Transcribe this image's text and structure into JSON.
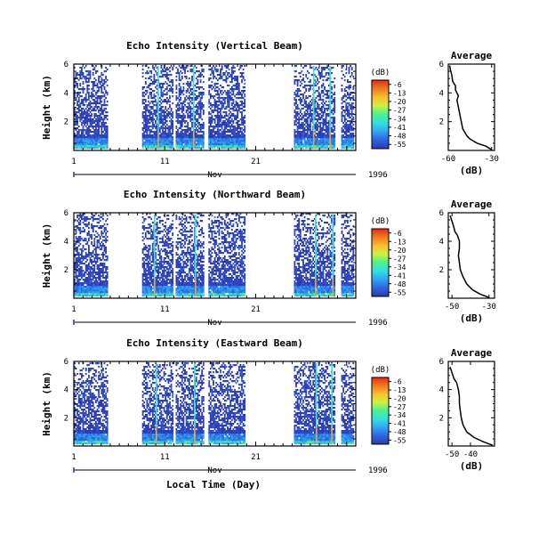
{
  "figure": {
    "xlabel": "Local Time (Day)",
    "month_label": "Nov",
    "year_label": "1996"
  },
  "colorbar": {
    "unit": "(dB)",
    "ticks": [
      "-6",
      "-13",
      "-20",
      "-27",
      "-34",
      "-41",
      "-48",
      "-55"
    ],
    "stops": [
      "#2a3bb0",
      "#2f63e0",
      "#2fa6f0",
      "#33e0e0",
      "#4cf08c",
      "#d0f040",
      "#f8c030",
      "#f07a20",
      "#e02b16"
    ]
  },
  "chart_data": [
    {
      "type": "heatmap",
      "title": "Echo Intensity (Vertical Beam)",
      "ylabel": "Height (km)",
      "xlim": [
        1,
        32
      ],
      "ylim": [
        0,
        6
      ],
      "x_ticks": [
        "1",
        "11",
        "21"
      ],
      "y_ticks": [
        "6",
        "4",
        "2"
      ],
      "data_segments": [
        [
          1,
          4.6
        ],
        [
          8.5,
          11.8
        ],
        [
          12.2,
          15.2
        ],
        [
          15.8,
          19.8
        ],
        [
          25.2,
          29.6
        ],
        [
          30.4,
          31.7
        ]
      ],
      "bright_columns": [
        10.2,
        14.1,
        27.3,
        29.1
      ],
      "profile": {
        "title": "Average",
        "xlabel": "(dB)",
        "xlim": [
          -60,
          -28
        ],
        "x_ticks": [
          -60,
          -30
        ],
        "ylim": [
          0,
          6
        ],
        "y_ticks": [
          6,
          4,
          2
        ],
        "height_km": [
          0.05,
          0.3,
          0.5,
          0.8,
          1.0,
          1.5,
          2.0,
          2.5,
          3.0,
          3.5,
          3.8,
          4.2,
          4.5,
          4.8,
          5.2,
          5.6,
          5.9
        ],
        "dB": [
          -30,
          -34,
          -40,
          -45,
          -47,
          -50,
          -51,
          -52,
          -53,
          -54,
          -53,
          -55,
          -55,
          -57,
          -57.5,
          -58.5,
          -59
        ]
      }
    },
    {
      "type": "heatmap",
      "title": "Echo Intensity (Northward Beam)",
      "ylabel": "Height (km)",
      "xlim": [
        1,
        32
      ],
      "ylim": [
        0,
        6
      ],
      "x_ticks": [
        "1",
        "11",
        "21"
      ],
      "y_ticks": [
        "6",
        "4",
        "2"
      ],
      "data_segments": [
        [
          1,
          4.6
        ],
        [
          8.5,
          11.8
        ],
        [
          12.2,
          15.2
        ],
        [
          15.8,
          19.8
        ],
        [
          25.2,
          29.6
        ],
        [
          30.4,
          31.7
        ]
      ],
      "bright_columns": [
        9.8,
        14.3,
        27.5,
        29.4
      ],
      "profile": {
        "title": "Average",
        "xlabel": "(dB)",
        "xlim": [
          -52,
          -27
        ],
        "x_ticks": [
          -50,
          -30
        ],
        "ylim": [
          0,
          6
        ],
        "y_ticks": [
          6,
          4,
          2
        ],
        "height_km": [
          0.05,
          0.3,
          0.6,
          1.0,
          1.5,
          2.0,
          2.5,
          3.0,
          3.5,
          4.0,
          4.4,
          4.7,
          5.0,
          5.4,
          5.8
        ],
        "dB": [
          -30,
          -35,
          -39,
          -42,
          -44,
          -45.5,
          -46,
          -46.5,
          -46,
          -46,
          -47,
          -48.5,
          -49,
          -50,
          -51
        ]
      }
    },
    {
      "type": "heatmap",
      "title": "Echo Intensity (Eastward Beam)",
      "ylabel": "Height (km)",
      "xlim": [
        1,
        32
      ],
      "ylim": [
        0,
        6
      ],
      "x_ticks": [
        "1",
        "11",
        "21"
      ],
      "y_ticks": [
        "6",
        "4",
        "2"
      ],
      "data_segments": [
        [
          1,
          4.6
        ],
        [
          8.5,
          11.8
        ],
        [
          12.2,
          15.2
        ],
        [
          15.8,
          19.8
        ],
        [
          25.2,
          29.6
        ],
        [
          30.4,
          31.7
        ]
      ],
      "bright_columns": [
        10.0,
        14.2,
        27.6,
        29.3
      ],
      "profile": {
        "title": "Average",
        "xlabel": "(dB)",
        "xlim": [
          -52,
          -27
        ],
        "x_ticks": [
          -50,
          -40
        ],
        "ylim": [
          0,
          6
        ],
        "y_ticks": [
          6,
          4,
          2
        ],
        "height_km": [
          0.05,
          0.3,
          0.6,
          1.0,
          1.5,
          2.0,
          2.5,
          3.0,
          3.5,
          4.0,
          4.5,
          4.8,
          5.2,
          5.6
        ],
        "dB": [
          -28,
          -33,
          -38,
          -42,
          -44,
          -45,
          -45.5,
          -46,
          -46,
          -46.5,
          -47.5,
          -49,
          -50,
          -51
        ]
      }
    }
  ]
}
